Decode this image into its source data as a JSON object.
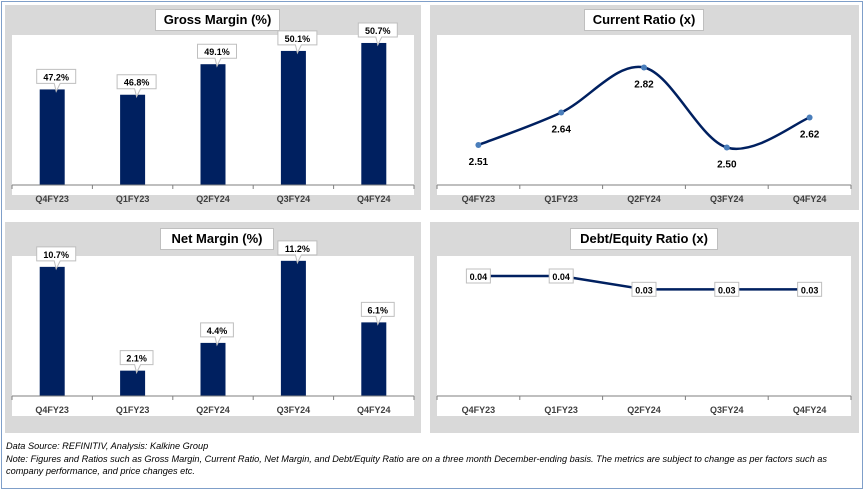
{
  "footer": {
    "source": "Data Source: REFINITIV, Analysis: Kalkine Group",
    "note": "Note: Figures and Ratios such as Gross Margin, Current Ratio, Net Margin, and Debt/Equity Ratio are on a three month December-ending basis. The metrics are subject to change as per factors such as company performance, and price changes etc."
  },
  "colors": {
    "bar": "#002060",
    "line": "#002060",
    "marker": "#4a7ebb",
    "panel_bg": "#d9d9d9"
  },
  "chart_data": [
    {
      "type": "bar",
      "title": "Gross Margin (%)",
      "categories": [
        "Q4FY23",
        "Q1FY23",
        "Q2FY24",
        "Q3FY24",
        "Q4FY24"
      ],
      "values": [
        47.2,
        46.8,
        49.1,
        50.1,
        50.7
      ],
      "labels": [
        "47.2%",
        "46.8%",
        "49.1%",
        "50.1%",
        "50.7%"
      ],
      "ylim": [
        40,
        51.3
      ]
    },
    {
      "type": "line",
      "title": "Current Ratio (x)",
      "categories": [
        "Q4FY23",
        "Q1FY23",
        "Q2FY24",
        "Q3FY24",
        "Q4FY24"
      ],
      "values": [
        2.51,
        2.64,
        2.82,
        2.5,
        2.62
      ],
      "labels": [
        "2.51",
        "2.64",
        "2.82",
        "2.50",
        "2.62"
      ],
      "ylim": [
        2.35,
        2.95
      ],
      "smooth": true
    },
    {
      "type": "bar",
      "title": "Net Margin (%)",
      "categories": [
        "Q4FY23",
        "Q1FY23",
        "Q2FY24",
        "Q3FY24",
        "Q4FY24"
      ],
      "values": [
        10.7,
        2.1,
        4.4,
        11.2,
        6.1
      ],
      "labels": [
        "10.7%",
        "2.1%",
        "4.4%",
        "11.2%",
        "6.1%"
      ],
      "ylim": [
        0,
        11.6
      ]
    },
    {
      "type": "line",
      "title": "Debt/Equity Ratio (x)",
      "categories": [
        "Q4FY23",
        "Q1FY23",
        "Q2FY24",
        "Q3FY24",
        "Q4FY24"
      ],
      "values": [
        0.04,
        0.04,
        0.03,
        0.03,
        0.03
      ],
      "labels": [
        "0.04",
        "0.04",
        "0.03",
        "0.03",
        "0.03"
      ],
      "ylim": [
        -0.05,
        0.055
      ],
      "smooth": false
    }
  ]
}
